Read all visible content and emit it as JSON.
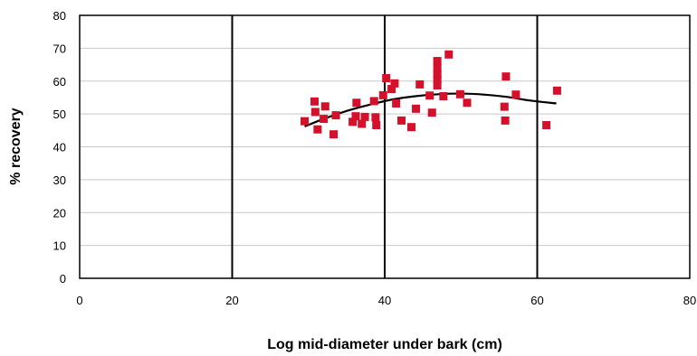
{
  "chart_data": {
    "type": "scatter",
    "title": "",
    "xlabel": "Log mid-diameter under bark (cm)",
    "ylabel": "% recovery",
    "xlim": [
      0,
      80
    ],
    "ylim": [
      0,
      80
    ],
    "xticks": [
      "0",
      "20",
      "40",
      "60",
      "80"
    ],
    "yticks": [
      "0",
      "10",
      "20",
      "30",
      "40",
      "50",
      "60",
      "70",
      "80"
    ],
    "grid": {
      "vertical_major_lines": true,
      "horizontal_lines": true
    },
    "colors": {
      "points": "#d4102a",
      "trendline": "#000000",
      "gridline_vertical": "#000000",
      "gridline_horizontal": "#c8c8c8"
    },
    "series": [
      {
        "marker": "square",
        "points": [
          [
            29.5,
            47.8
          ],
          [
            30.8,
            53.8
          ],
          [
            30.9,
            50.6
          ],
          [
            31.2,
            45.3
          ],
          [
            32.0,
            48.5
          ],
          [
            32.2,
            52.3
          ],
          [
            33.3,
            43.8
          ],
          [
            33.6,
            49.6
          ],
          [
            35.8,
            47.6
          ],
          [
            36.2,
            49.3
          ],
          [
            36.3,
            53.4
          ],
          [
            37.0,
            47.0
          ],
          [
            37.4,
            49.1
          ],
          [
            38.6,
            53.9
          ],
          [
            38.8,
            49.0
          ],
          [
            38.9,
            46.6
          ],
          [
            39.8,
            55.7
          ],
          [
            40.2,
            60.9
          ],
          [
            40.9,
            57.6
          ],
          [
            41.3,
            59.3
          ],
          [
            41.5,
            53.2
          ],
          [
            42.2,
            48.0
          ],
          [
            43.5,
            46.0
          ],
          [
            44.1,
            51.6
          ],
          [
            44.6,
            59.0
          ],
          [
            45.9,
            55.6
          ],
          [
            46.2,
            50.4
          ],
          [
            46.9,
            66.1
          ],
          [
            46.9,
            64.0
          ],
          [
            46.9,
            62.0
          ],
          [
            46.9,
            60.5
          ],
          [
            46.9,
            58.7
          ],
          [
            47.7,
            55.4
          ],
          [
            48.4,
            68.1
          ],
          [
            49.9,
            56.0
          ],
          [
            50.8,
            53.4
          ],
          [
            55.7,
            52.2
          ],
          [
            55.8,
            48.0
          ],
          [
            55.9,
            61.4
          ],
          [
            57.2,
            55.9
          ],
          [
            61.2,
            46.6
          ],
          [
            62.6,
            57.1
          ]
        ]
      }
    ],
    "trendline": {
      "type": "polynomial",
      "x_range": [
        29.5,
        62.5
      ],
      "points": [
        [
          29.5,
          46.2
        ],
        [
          32,
          48.5
        ],
        [
          35,
          50.9
        ],
        [
          38,
          52.8
        ],
        [
          41,
          54.4
        ],
        [
          44,
          55.4
        ],
        [
          47,
          56.0
        ],
        [
          50,
          56.2
        ],
        [
          53,
          55.9
        ],
        [
          56,
          55.2
        ],
        [
          59,
          54.1
        ],
        [
          62.5,
          53.2
        ]
      ]
    }
  }
}
